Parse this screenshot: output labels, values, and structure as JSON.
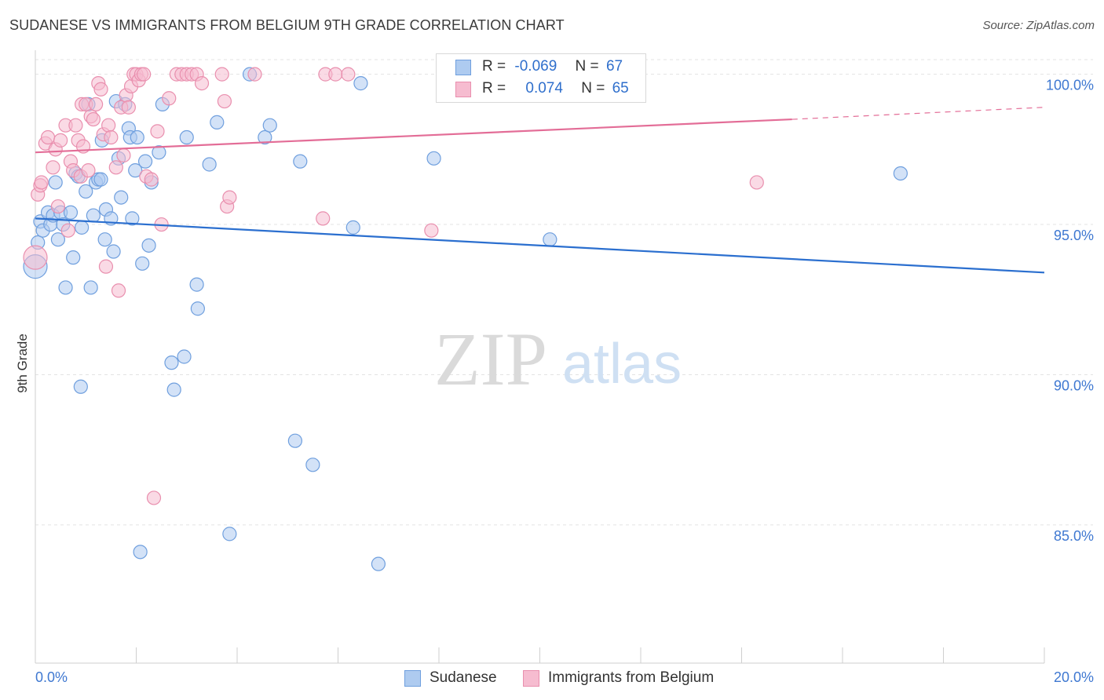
{
  "chart_data": {
    "type": "scatter",
    "title": "SUDANESE VS IMMIGRANTS FROM BELGIUM 9TH GRADE CORRELATION CHART",
    "source": "Source: ZipAtlas.com",
    "ylabel": "9th Grade",
    "xlabel": "",
    "xlim": [
      0,
      20
    ],
    "ylim": [
      80.4,
      100.8
    ],
    "x_tick_labels": [
      "0.0%",
      "20.0%"
    ],
    "y_ticks": [
      85,
      90,
      95,
      100
    ],
    "y_tick_labels": [
      "85.0%",
      "90.0%",
      "95.0%",
      "100.0%"
    ],
    "grid": true,
    "watermark": {
      "zip": "ZIP",
      "atlas": "atlas"
    },
    "colors": {
      "sudanese_fill": "#aecbf0",
      "sudanese_stroke": "#6f9fde",
      "sudanese_line": "#2b6fcf",
      "belgium_fill": "#f6bcd0",
      "belgium_stroke": "#e98fae",
      "belgium_line": "#e36d97",
      "tick_label": "#3f78d1"
    },
    "legend": {
      "rows": [
        {
          "r_label": "R =",
          "r_value": "-0.069",
          "n_label": "N =",
          "n_value": "67"
        },
        {
          "r_label": "R =",
          "r_value": "0.074",
          "n_label": "N =",
          "n_value": "65"
        }
      ]
    },
    "series": [
      {
        "name": "Sudanese",
        "trend": {
          "x": [
            0.0,
            20.0
          ],
          "y": [
            95.2,
            93.4
          ]
        },
        "points": [
          [
            0.0,
            93.6
          ],
          [
            0.05,
            94.4
          ],
          [
            0.1,
            95.1
          ],
          [
            0.15,
            94.8
          ],
          [
            0.25,
            95.4
          ],
          [
            0.3,
            95.0
          ],
          [
            0.35,
            95.3
          ],
          [
            0.4,
            96.4
          ],
          [
            0.45,
            94.5
          ],
          [
            0.5,
            95.4
          ],
          [
            0.55,
            95.0
          ],
          [
            0.6,
            92.9
          ],
          [
            0.7,
            95.4
          ],
          [
            0.75,
            93.9
          ],
          [
            0.8,
            96.7
          ],
          [
            0.85,
            96.6
          ],
          [
            0.9,
            89.6
          ],
          [
            0.92,
            94.9
          ],
          [
            1.0,
            96.1
          ],
          [
            1.05,
            99.0
          ],
          [
            1.1,
            92.9
          ],
          [
            1.15,
            95.3
          ],
          [
            1.2,
            96.4
          ],
          [
            1.25,
            96.5
          ],
          [
            1.3,
            96.5
          ],
          [
            1.32,
            97.8
          ],
          [
            1.38,
            94.5
          ],
          [
            1.4,
            95.5
          ],
          [
            1.5,
            95.2
          ],
          [
            1.55,
            94.1
          ],
          [
            1.6,
            99.1
          ],
          [
            1.65,
            97.2
          ],
          [
            1.7,
            95.9
          ],
          [
            1.78,
            99.0
          ],
          [
            1.85,
            98.2
          ],
          [
            1.88,
            97.9
          ],
          [
            1.92,
            95.2
          ],
          [
            1.98,
            96.8
          ],
          [
            2.02,
            97.9
          ],
          [
            2.08,
            84.1
          ],
          [
            2.12,
            93.7
          ],
          [
            2.18,
            97.1
          ],
          [
            2.25,
            94.3
          ],
          [
            2.3,
            96.4
          ],
          [
            2.45,
            97.4
          ],
          [
            2.52,
            99.0
          ],
          [
            2.7,
            90.4
          ],
          [
            2.75,
            89.5
          ],
          [
            2.95,
            90.6
          ],
          [
            3.0,
            97.9
          ],
          [
            3.2,
            93.0
          ],
          [
            3.22,
            92.2
          ],
          [
            3.45,
            97.0
          ],
          [
            3.6,
            98.4
          ],
          [
            3.85,
            84.7
          ],
          [
            4.25,
            100.0
          ],
          [
            4.55,
            97.9
          ],
          [
            4.65,
            98.3
          ],
          [
            5.15,
            87.8
          ],
          [
            5.25,
            97.1
          ],
          [
            5.5,
            87.0
          ],
          [
            6.3,
            94.9
          ],
          [
            6.45,
            99.7
          ],
          [
            6.8,
            83.7
          ],
          [
            7.9,
            97.2
          ],
          [
            10.2,
            94.5
          ],
          [
            17.15,
            96.7
          ]
        ]
      },
      {
        "name": "Immigrants from Belgium",
        "trend": {
          "x": [
            0.0,
            15.0
          ],
          "y": [
            97.4,
            98.5
          ]
        },
        "trend_dashed": {
          "x": [
            15.0,
            20.0
          ],
          "y": [
            98.5,
            98.9
          ]
        },
        "points": [
          [
            0.0,
            93.9
          ],
          [
            0.05,
            96.0
          ],
          [
            0.1,
            96.3
          ],
          [
            0.12,
            96.4
          ],
          [
            0.2,
            97.7
          ],
          [
            0.25,
            97.9
          ],
          [
            0.35,
            96.9
          ],
          [
            0.4,
            97.5
          ],
          [
            0.45,
            95.6
          ],
          [
            0.5,
            97.8
          ],
          [
            0.6,
            98.3
          ],
          [
            0.65,
            94.8
          ],
          [
            0.7,
            97.1
          ],
          [
            0.75,
            96.8
          ],
          [
            0.8,
            98.3
          ],
          [
            0.85,
            97.8
          ],
          [
            0.9,
            96.6
          ],
          [
            0.92,
            99.0
          ],
          [
            0.95,
            97.6
          ],
          [
            1.0,
            99.0
          ],
          [
            1.05,
            96.8
          ],
          [
            1.1,
            98.6
          ],
          [
            1.15,
            98.5
          ],
          [
            1.2,
            99.0
          ],
          [
            1.25,
            99.7
          ],
          [
            1.3,
            99.5
          ],
          [
            1.35,
            98.0
          ],
          [
            1.4,
            93.6
          ],
          [
            1.45,
            98.3
          ],
          [
            1.5,
            97.9
          ],
          [
            1.6,
            96.9
          ],
          [
            1.65,
            92.8
          ],
          [
            1.7,
            98.9
          ],
          [
            1.75,
            97.3
          ],
          [
            1.8,
            99.3
          ],
          [
            1.85,
            98.9
          ],
          [
            1.9,
            99.6
          ],
          [
            1.95,
            100.0
          ],
          [
            2.0,
            100.0
          ],
          [
            2.05,
            99.8
          ],
          [
            2.1,
            100.0
          ],
          [
            2.15,
            100.0
          ],
          [
            2.2,
            96.6
          ],
          [
            2.3,
            96.5
          ],
          [
            2.35,
            85.9
          ],
          [
            2.42,
            98.1
          ],
          [
            2.5,
            95.0
          ],
          [
            2.65,
            99.2
          ],
          [
            2.8,
            100.0
          ],
          [
            2.9,
            100.0
          ],
          [
            3.0,
            100.0
          ],
          [
            3.1,
            100.0
          ],
          [
            3.2,
            100.0
          ],
          [
            3.3,
            99.7
          ],
          [
            3.7,
            100.0
          ],
          [
            3.75,
            99.1
          ],
          [
            3.8,
            95.6
          ],
          [
            3.85,
            95.9
          ],
          [
            4.35,
            100.0
          ],
          [
            5.7,
            95.2
          ],
          [
            5.75,
            100.0
          ],
          [
            5.95,
            100.0
          ],
          [
            6.2,
            100.0
          ],
          [
            7.85,
            94.8
          ],
          [
            14.3,
            96.4
          ]
        ]
      }
    ]
  },
  "bottom_legend": {
    "items": [
      {
        "label": "Sudanese"
      },
      {
        "label": "Immigrants from Belgium"
      }
    ]
  }
}
